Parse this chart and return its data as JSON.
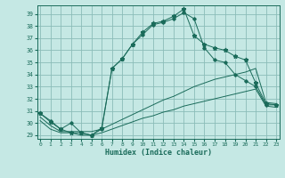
{
  "xlabel": "Humidex (Indice chaleur)",
  "xlim": [
    -0.3,
    23.3
  ],
  "ylim": [
    28.7,
    39.7
  ],
  "yticks": [
    29,
    30,
    31,
    32,
    33,
    34,
    35,
    36,
    37,
    38,
    39
  ],
  "xticks": [
    0,
    1,
    2,
    3,
    4,
    5,
    6,
    7,
    8,
    9,
    10,
    11,
    12,
    13,
    14,
    15,
    16,
    17,
    18,
    19,
    20,
    21,
    22,
    23
  ],
  "bg_color": "#c5e8e4",
  "grid_color": "#8bbcb8",
  "line_color": "#1a6b5a",
  "curve_jagged1_y": [
    30.8,
    30.2,
    29.5,
    30.0,
    29.2,
    29.0,
    29.5,
    34.5,
    35.3,
    36.5,
    37.3,
    38.1,
    38.3,
    38.6,
    39.1,
    38.6,
    36.2,
    35.2,
    35.0,
    34.0,
    33.5,
    33.0,
    31.5,
    31.5
  ],
  "curve_jagged2_y": [
    30.8,
    30.1,
    29.5,
    29.2,
    29.2,
    29.0,
    29.6,
    34.5,
    35.3,
    36.5,
    37.5,
    38.2,
    38.4,
    38.8,
    39.4,
    37.2,
    36.5,
    36.2,
    36.0,
    35.5,
    35.2,
    33.3,
    31.6,
    31.5
  ],
  "curve_straight_hi_y": [
    30.5,
    29.8,
    29.3,
    29.3,
    29.3,
    29.3,
    29.5,
    29.9,
    30.3,
    30.7,
    31.1,
    31.5,
    31.9,
    32.2,
    32.6,
    33.0,
    33.3,
    33.6,
    33.8,
    34.0,
    34.2,
    34.5,
    31.7,
    31.6
  ],
  "curve_straight_lo_y": [
    30.2,
    29.5,
    29.2,
    29.2,
    29.0,
    29.0,
    29.2,
    29.5,
    29.8,
    30.1,
    30.4,
    30.6,
    30.9,
    31.1,
    31.4,
    31.6,
    31.8,
    32.0,
    32.2,
    32.4,
    32.6,
    32.8,
    31.4,
    31.3
  ]
}
